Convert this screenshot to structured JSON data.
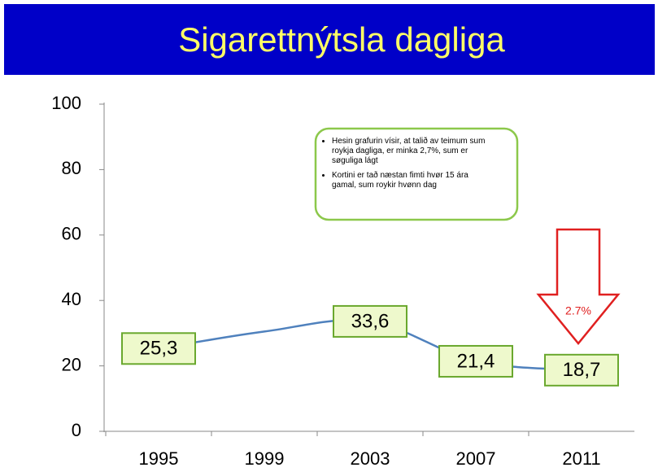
{
  "chart_data": {
    "type": "line",
    "title": "Sigarettnýtsla dagliga",
    "categories": [
      "1995",
      "1999",
      "2003",
      "2007",
      "2011"
    ],
    "values": [
      25.3,
      30.5,
      33.6,
      21.4,
      18.7
    ],
    "value_labels": [
      "25,3",
      null,
      "33,6",
      "21,4",
      "18,7"
    ],
    "color": "#4f81bd",
    "ylim": [
      0,
      100
    ],
    "yticks": [
      0,
      20,
      40,
      60,
      80,
      100
    ],
    "annotations": [
      "Hesin grafurin vísir, at talið av teimum sum roykja dagliga, er minka 2,7%, sum er søguliga lágt",
      "Kortini er tað næstan fimti hvør 15 ára gamal, sum roykir hvønn dag"
    ],
    "arrow_label": "2.7%"
  }
}
